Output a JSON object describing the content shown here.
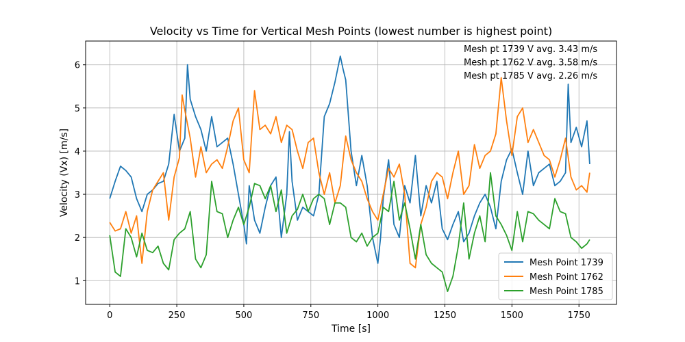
{
  "chart_data": {
    "type": "line",
    "title": "Velocity vs Time for Vertical Mesh Points (lowest number is highest point)",
    "xlabel": "Time [s]",
    "ylabel": "Velocity (Vx) [m/s]",
    "xlim": [
      -90,
      1890
    ],
    "ylim": [
      0.45,
      6.55
    ],
    "xticks": [
      0,
      250,
      500,
      750,
      1000,
      1250,
      1500,
      1750
    ],
    "yticks": [
      1,
      2,
      3,
      4,
      5,
      6
    ],
    "grid": true,
    "legend_position": "lower-right",
    "annotations": [
      "Mesh pt 1739 V avg. 3.43 m/s",
      "Mesh pt 1762 V avg. 3.58 m/s",
      "Mesh pt 1785 V avg. 2.26 m/s"
    ],
    "series": [
      {
        "name": "Mesh Point 1739",
        "color": "#1f77b4",
        "x": [
          0,
          20,
          40,
          60,
          80,
          100,
          120,
          140,
          160,
          180,
          200,
          220,
          240,
          260,
          280,
          290,
          300,
          320,
          340,
          360,
          380,
          400,
          420,
          440,
          460,
          480,
          500,
          510,
          520,
          540,
          560,
          580,
          600,
          620,
          640,
          660,
          670,
          680,
          700,
          720,
          740,
          760,
          780,
          800,
          820,
          840,
          860,
          870,
          880,
          900,
          920,
          940,
          960,
          980,
          1000,
          1010,
          1020,
          1040,
          1060,
          1080,
          1100,
          1120,
          1140,
          1160,
          1180,
          1200,
          1220,
          1240,
          1260,
          1280,
          1300,
          1320,
          1340,
          1360,
          1380,
          1400,
          1420,
          1440,
          1460,
          1480,
          1500,
          1520,
          1540,
          1560,
          1580,
          1600,
          1620,
          1640,
          1660,
          1680,
          1700,
          1710,
          1720,
          1740,
          1760,
          1780,
          1790
        ],
        "y": [
          2.9,
          3.3,
          3.65,
          3.55,
          3.4,
          2.9,
          2.6,
          3.0,
          3.1,
          3.25,
          3.3,
          3.7,
          4.85,
          4.0,
          4.3,
          6.0,
          5.2,
          4.8,
          4.5,
          4.0,
          4.8,
          4.1,
          4.2,
          4.3,
          3.7,
          3.0,
          2.3,
          1.85,
          3.2,
          2.4,
          2.1,
          2.7,
          3.2,
          3.4,
          2.0,
          3.0,
          4.45,
          3.3,
          2.4,
          2.7,
          2.6,
          2.5,
          3.0,
          4.8,
          5.1,
          5.6,
          6.2,
          5.9,
          5.65,
          4.0,
          3.2,
          3.9,
          3.2,
          2.0,
          1.4,
          2.0,
          2.9,
          3.8,
          2.3,
          2.0,
          3.2,
          2.8,
          3.9,
          2.5,
          3.2,
          2.8,
          3.3,
          2.2,
          1.95,
          2.3,
          2.6,
          1.9,
          2.1,
          2.5,
          2.8,
          3.0,
          2.7,
          2.2,
          3.3,
          3.8,
          4.05,
          3.5,
          3.0,
          4.0,
          3.2,
          3.5,
          3.6,
          3.7,
          3.2,
          3.3,
          3.5,
          5.55,
          4.2,
          4.55,
          4.1,
          4.7,
          3.7
        ]
      },
      {
        "name": "Mesh Point 1762",
        "color": "#ff7f0e",
        "x": [
          0,
          20,
          40,
          60,
          80,
          100,
          120,
          140,
          160,
          180,
          200,
          220,
          240,
          260,
          270,
          280,
          300,
          320,
          340,
          360,
          380,
          400,
          420,
          440,
          460,
          480,
          500,
          520,
          540,
          560,
          580,
          600,
          620,
          640,
          660,
          680,
          700,
          720,
          740,
          760,
          780,
          800,
          820,
          840,
          860,
          880,
          900,
          920,
          940,
          960,
          980,
          1000,
          1020,
          1040,
          1060,
          1080,
          1100,
          1120,
          1140,
          1160,
          1180,
          1200,
          1220,
          1240,
          1260,
          1280,
          1300,
          1320,
          1340,
          1360,
          1380,
          1400,
          1420,
          1440,
          1460,
          1480,
          1500,
          1520,
          1540,
          1560,
          1580,
          1600,
          1620,
          1640,
          1660,
          1680,
          1700,
          1720,
          1740,
          1760,
          1780,
          1790
        ],
        "y": [
          2.35,
          2.15,
          2.2,
          2.6,
          2.1,
          2.5,
          1.4,
          2.6,
          3.1,
          3.3,
          3.5,
          2.4,
          3.4,
          3.85,
          5.3,
          4.95,
          4.3,
          3.4,
          4.1,
          3.5,
          3.7,
          3.8,
          3.6,
          4.1,
          4.7,
          5.0,
          3.8,
          3.5,
          5.4,
          4.5,
          4.6,
          4.4,
          4.8,
          4.2,
          4.6,
          4.5,
          4.0,
          3.6,
          4.2,
          4.3,
          3.5,
          3.0,
          3.5,
          2.8,
          3.2,
          4.35,
          3.8,
          3.5,
          3.3,
          2.9,
          2.6,
          2.4,
          3.0,
          3.6,
          3.4,
          3.7,
          3.0,
          1.4,
          1.3,
          2.3,
          2.7,
          3.3,
          3.5,
          3.4,
          2.9,
          3.5,
          4.0,
          3.0,
          3.2,
          4.15,
          3.6,
          3.9,
          4.0,
          4.4,
          5.7,
          4.7,
          3.9,
          4.8,
          5.0,
          4.2,
          4.5,
          4.2,
          3.9,
          3.8,
          3.4,
          3.8,
          4.3,
          3.4,
          3.1,
          3.2,
          3.05,
          3.5
        ]
      },
      {
        "name": "Mesh Point 1785",
        "color": "#2ca02c",
        "x": [
          0,
          20,
          40,
          60,
          80,
          100,
          120,
          140,
          160,
          180,
          200,
          220,
          240,
          260,
          280,
          300,
          320,
          340,
          360,
          380,
          400,
          420,
          440,
          460,
          480,
          500,
          520,
          540,
          560,
          580,
          600,
          620,
          640,
          660,
          680,
          700,
          720,
          740,
          760,
          780,
          800,
          820,
          840,
          860,
          880,
          900,
          920,
          940,
          960,
          980,
          1000,
          1020,
          1040,
          1060,
          1080,
          1100,
          1120,
          1140,
          1160,
          1180,
          1200,
          1220,
          1240,
          1260,
          1280,
          1300,
          1320,
          1340,
          1360,
          1380,
          1400,
          1420,
          1440,
          1460,
          1480,
          1500,
          1520,
          1540,
          1560,
          1580,
          1600,
          1620,
          1640,
          1660,
          1680,
          1700,
          1720,
          1740,
          1760,
          1780,
          1790
        ],
        "y": [
          2.05,
          1.2,
          1.1,
          2.2,
          2.0,
          1.55,
          2.1,
          1.7,
          1.65,
          1.8,
          1.4,
          1.25,
          1.95,
          2.1,
          2.2,
          2.6,
          1.5,
          1.3,
          1.6,
          3.3,
          2.6,
          2.55,
          2.0,
          2.4,
          2.7,
          2.3,
          2.7,
          3.25,
          3.2,
          2.9,
          3.2,
          2.6,
          3.1,
          2.1,
          2.5,
          2.65,
          3.0,
          2.6,
          2.9,
          3.0,
          2.9,
          2.3,
          2.8,
          2.8,
          2.7,
          2.0,
          1.9,
          2.1,
          1.8,
          2.0,
          2.1,
          2.7,
          2.6,
          3.3,
          2.4,
          2.8,
          2.2,
          1.5,
          2.3,
          1.6,
          1.4,
          1.3,
          1.2,
          0.75,
          1.1,
          1.8,
          2.8,
          1.5,
          2.1,
          2.5,
          1.9,
          3.5,
          2.5,
          2.3,
          2.05,
          1.7,
          2.6,
          1.9,
          2.6,
          2.55,
          2.4,
          2.3,
          2.2,
          2.9,
          2.6,
          2.55,
          2.0,
          1.9,
          1.75,
          1.85,
          1.95
        ]
      }
    ]
  }
}
